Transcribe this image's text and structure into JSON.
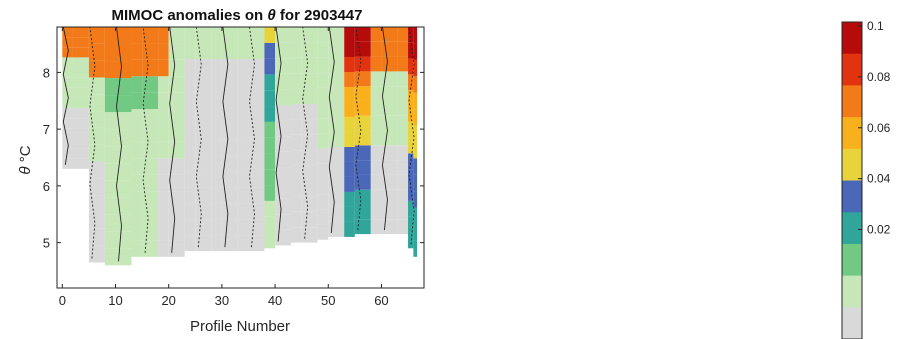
{
  "chart_data": {
    "type": "heatmap",
    "title": {
      "before": "MIMOC  anomalies  on ",
      "symbol": "θ",
      "after": "  for  2903447"
    },
    "xlabel": "Profile Number",
    "ylabel": {
      "symbol": "θ",
      "unit": "°C"
    },
    "xlim": [
      -1,
      68
    ],
    "ylim": [
      4.2,
      8.8
    ],
    "xticks": [
      "0",
      "10",
      "20",
      "30",
      "40",
      "50",
      "60"
    ],
    "yticks": [
      "5",
      "6",
      "7",
      "8"
    ],
    "colorbar": {
      "ticks": [
        "0.1",
        "0.08",
        "0.06",
        "0.04",
        "0.02"
      ],
      "range": [
        0,
        0.1
      ],
      "colormap": [
        "#d9d9d9",
        "#c6e7b8",
        "#71c983",
        "#30a59a",
        "#4a67b8",
        "#e9d33b",
        "#f9b01d",
        "#f37a19",
        "#e1330f",
        "#b50b0b"
      ]
    },
    "anomaly_columns": [
      {
        "x": 0,
        "bottom": 6.3,
        "value": 0.02
      },
      {
        "x": 2,
        "bottom": 6.3,
        "value": 0.02
      },
      {
        "x": 5,
        "bottom": 4.65,
        "value": 0.02
      },
      {
        "x": 8,
        "bottom": 4.6,
        "value": 0.03
      },
      {
        "x": 10,
        "bottom": 4.6,
        "value": 0.03
      },
      {
        "x": 13,
        "bottom": 4.75,
        "value": 0.03
      },
      {
        "x": 15,
        "bottom": 4.75,
        "value": 0.03
      },
      {
        "x": 18,
        "bottom": 4.75,
        "value": 0.02
      },
      {
        "x": 20,
        "bottom": 4.75,
        "value": 0.02
      },
      {
        "x": 23,
        "bottom": 4.85,
        "value": 0.012
      },
      {
        "x": 25,
        "bottom": 4.85,
        "value": 0.012
      },
      {
        "x": 28,
        "bottom": 4.85,
        "value": 0.012
      },
      {
        "x": 30,
        "bottom": 4.85,
        "value": 0.012
      },
      {
        "x": 33,
        "bottom": 4.85,
        "value": 0.012
      },
      {
        "x": 35,
        "bottom": 4.85,
        "value": 0.012
      },
      {
        "x": 38,
        "bottom": 4.9,
        "value": 0.05
      },
      {
        "x": 40,
        "bottom": 4.95,
        "value": 0.015
      },
      {
        "x": 43,
        "bottom": 5.0,
        "value": 0.015
      },
      {
        "x": 45,
        "bottom": 5.0,
        "value": 0.015
      },
      {
        "x": 48,
        "bottom": 5.05,
        "value": 0.02
      },
      {
        "x": 50,
        "bottom": 5.1,
        "value": 0.02
      },
      {
        "x": 53,
        "bottom": 5.1,
        "value": 0.1
      },
      {
        "x": 55,
        "bottom": 5.15,
        "value": 0.1
      },
      {
        "x": 58,
        "bottom": 5.15,
        "value": 0.02
      },
      {
        "x": 60,
        "bottom": 5.15,
        "value": 0.02
      },
      {
        "x": 63,
        "bottom": 5.15,
        "value": 0.02
      },
      {
        "x": 65,
        "bottom": 4.9,
        "value": 0.1
      },
      {
        "x": 66,
        "bottom": 4.75,
        "value": 0.1
      }
    ]
  }
}
